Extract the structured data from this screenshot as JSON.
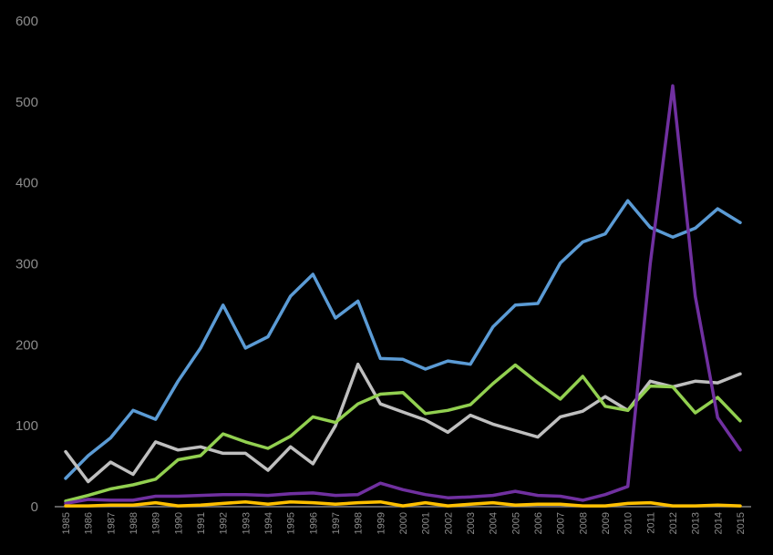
{
  "chart_data": {
    "type": "line",
    "title": "",
    "xlabel": "",
    "ylabel": "",
    "ylim": [
      0,
      600
    ],
    "yticks": [
      0,
      100,
      200,
      300,
      400,
      500,
      600
    ],
    "grid": false,
    "legend": "none",
    "x": [
      "1985",
      "1986",
      "1987",
      "1988",
      "1989",
      "1990",
      "1991",
      "1992",
      "1993",
      "1994",
      "1995",
      "1996",
      "1997",
      "1998",
      "1999",
      "2000",
      "2001",
      "2002",
      "2003",
      "2004",
      "2005",
      "2006",
      "2007",
      "2008",
      "2009",
      "2010",
      "2011",
      "2012",
      "2013",
      "2014",
      "2015"
    ],
    "series": [
      {
        "color": "#5b9bd5",
        "values": [
          35,
          63,
          85,
          119,
          108,
          155,
          196,
          249,
          196,
          210,
          260,
          287,
          233,
          254,
          183,
          182,
          170,
          180,
          176,
          222,
          249,
          251,
          301,
          327,
          337,
          378,
          345,
          333,
          344,
          368,
          351
        ]
      },
      {
        "color": "#bfbfbf",
        "values": [
          68,
          31,
          55,
          40,
          80,
          70,
          74,
          66,
          66,
          45,
          74,
          53,
          100,
          176,
          127,
          117,
          107,
          92,
          113,
          102,
          94,
          86,
          111,
          118,
          136,
          119,
          155,
          148,
          155,
          153,
          164
        ]
      },
      {
        "color": "#92d050",
        "values": [
          7,
          14,
          22,
          27,
          34,
          58,
          63,
          90,
          80,
          72,
          87,
          111,
          104,
          127,
          139,
          141,
          115,
          119,
          126,
          152,
          175,
          153,
          133,
          161,
          124,
          119,
          149,
          148,
          116,
          135,
          106
        ]
      },
      {
        "color": "#7030a0",
        "values": [
          4,
          9,
          8,
          8,
          13,
          13,
          14,
          15,
          15,
          14,
          16,
          17,
          14,
          15,
          29,
          21,
          15,
          11,
          12,
          14,
          19,
          14,
          13,
          8,
          15,
          25,
          300,
          520,
          260,
          110,
          70
        ]
      },
      {
        "color": "#ffc000",
        "values": [
          1,
          1,
          2,
          2,
          5,
          1,
          2,
          4,
          6,
          3,
          6,
          5,
          3,
          5,
          6,
          1,
          5,
          1,
          3,
          5,
          2,
          3,
          3,
          1,
          1,
          4,
          5,
          1,
          1,
          2,
          1
        ]
      }
    ]
  }
}
